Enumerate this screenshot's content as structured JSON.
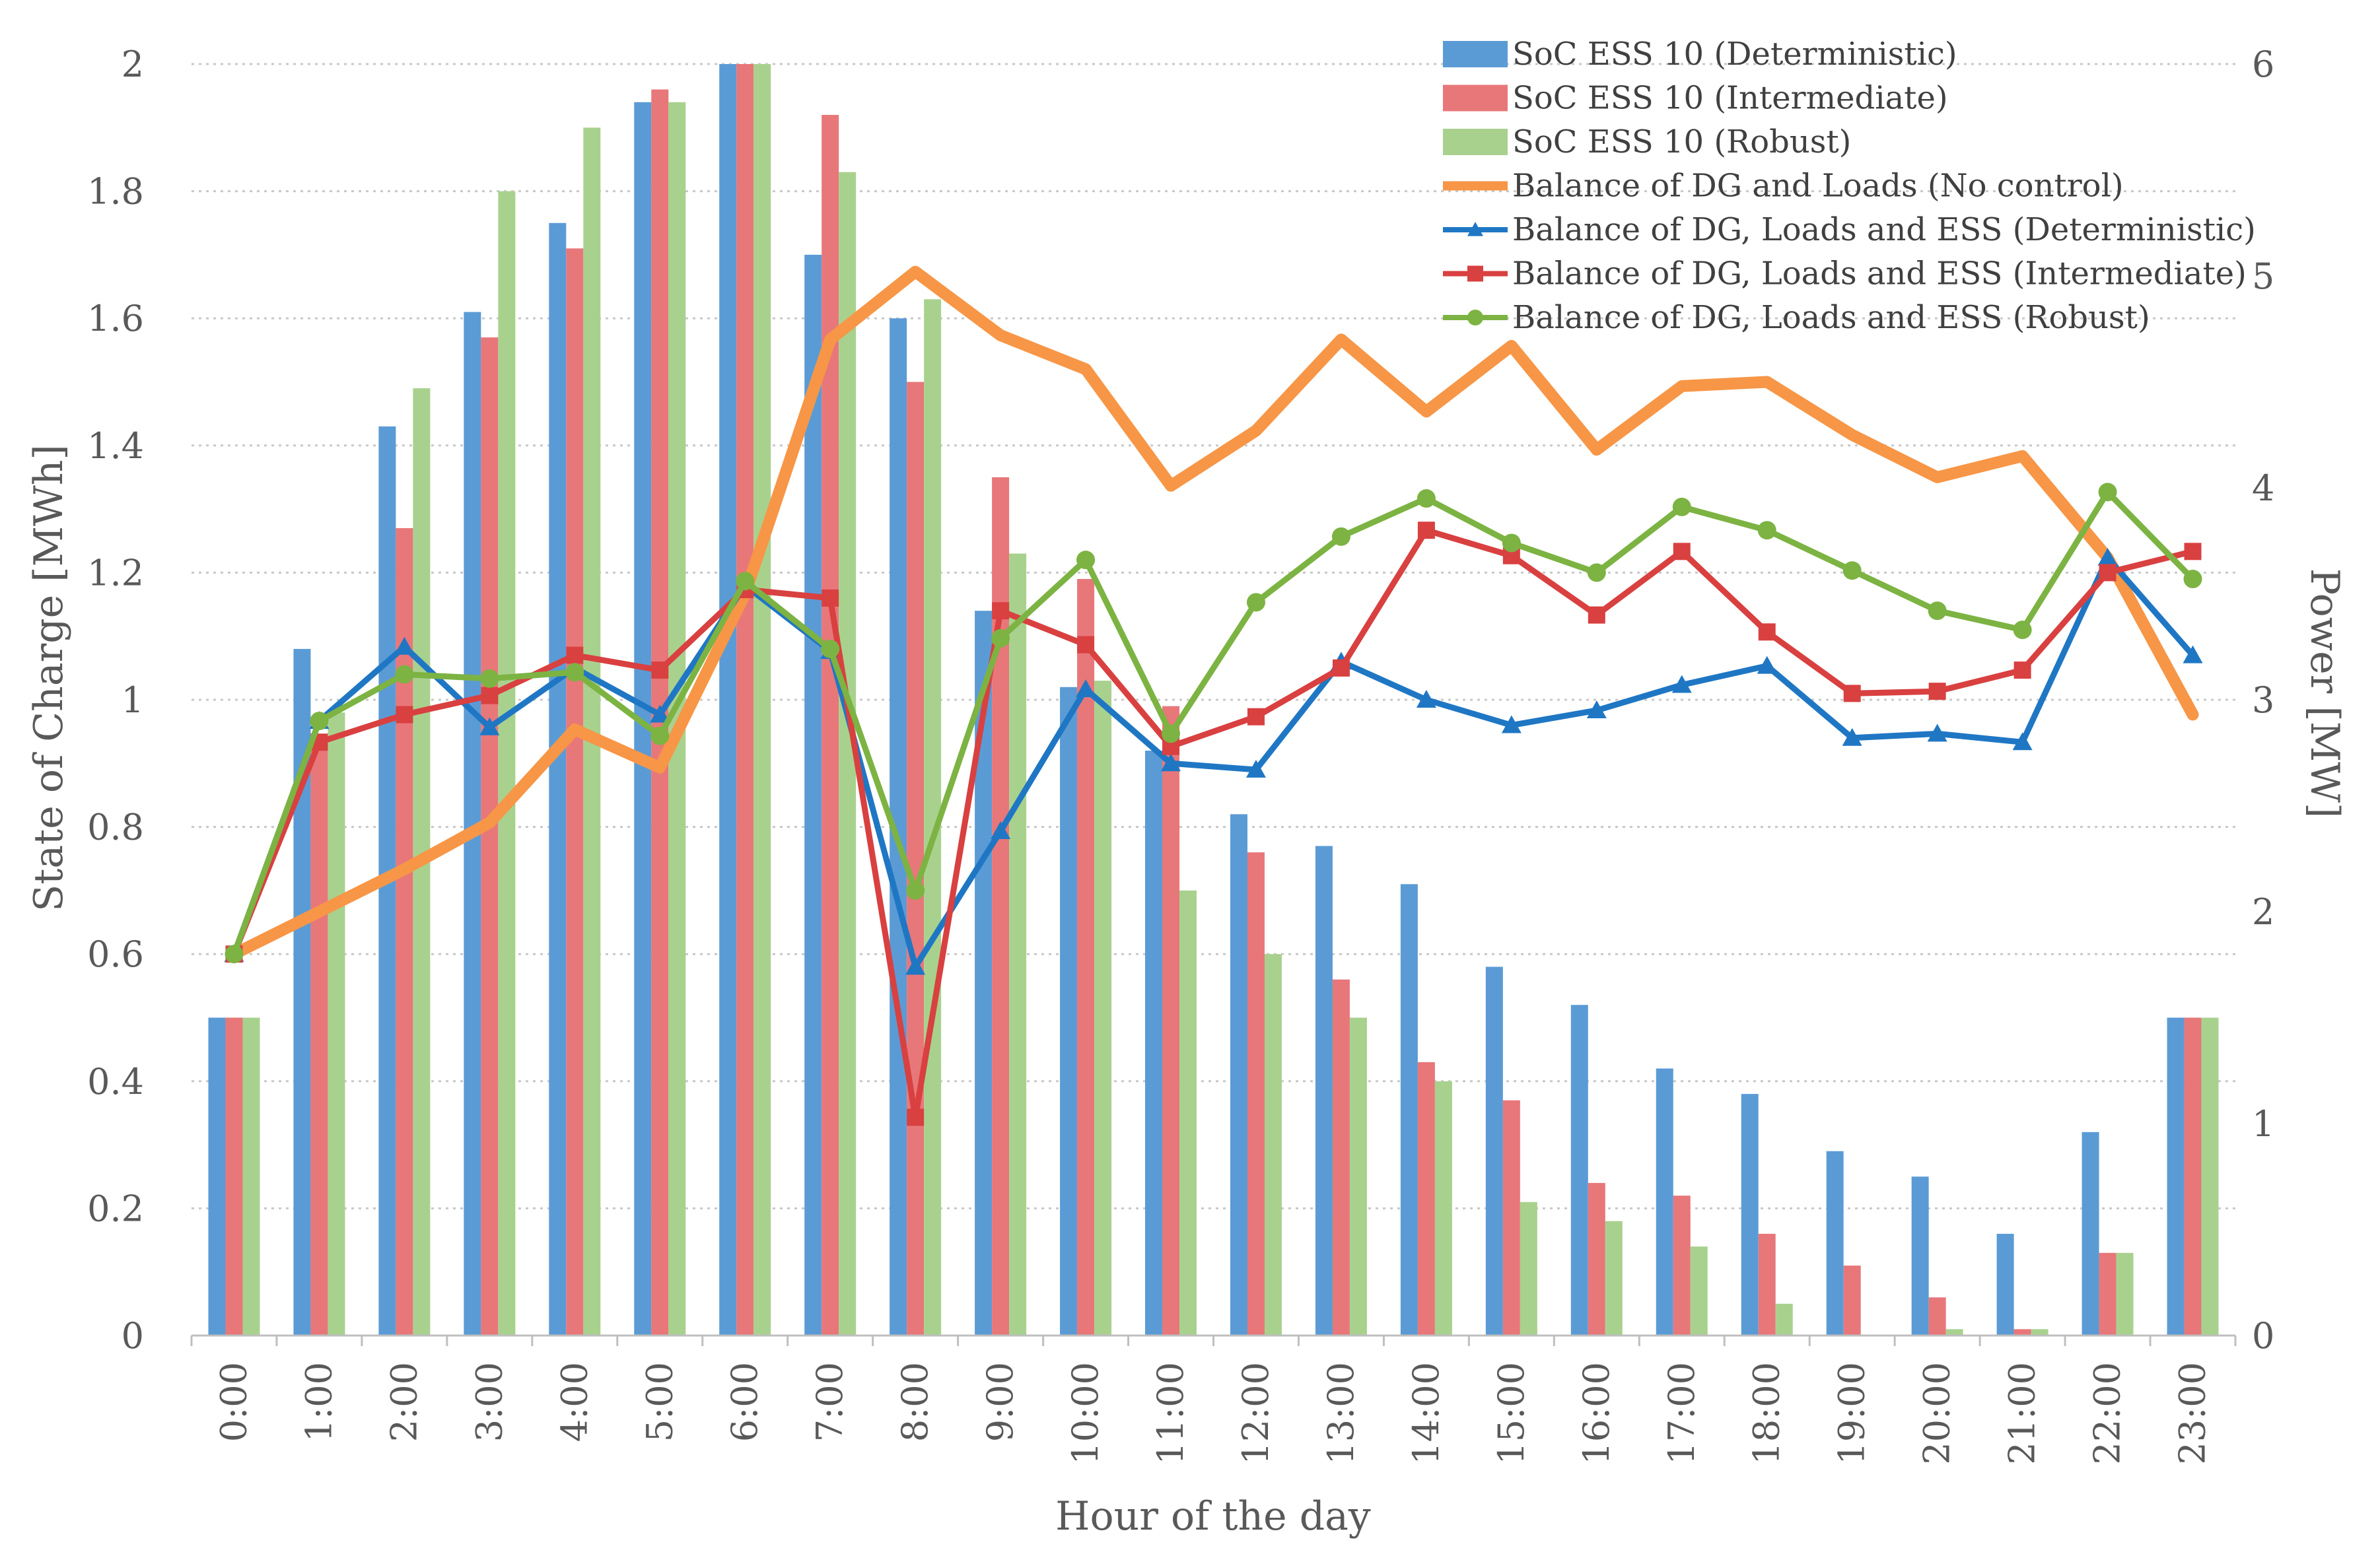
{
  "chart_data": {
    "type": "bar+line",
    "title": "",
    "xlabel": "Hour of the day",
    "ylabel_left": "State of Charge [MWh]",
    "ylabel_right": "Power [MW]",
    "ylim_left": [
      0,
      2
    ],
    "ylim_right": [
      0,
      6
    ],
    "yticks_left": [
      "0",
      "0.2",
      "0.4",
      "0.6",
      "0.8",
      "1",
      "1.2",
      "1.4",
      "1.6",
      "1.8",
      "2"
    ],
    "yticks_right": [
      "0",
      "1",
      "2",
      "3",
      "4",
      "5",
      "6"
    ],
    "grid": true,
    "legend_position": "top-right",
    "categories": [
      "0:00",
      "1:00",
      "2:00",
      "3:00",
      "4:00",
      "5:00",
      "6:00",
      "7:00",
      "8:00",
      "9:00",
      "10:00",
      "11:00",
      "12:00",
      "13:00",
      "14:00",
      "15:00",
      "16:00",
      "17:00",
      "18:00",
      "19:00",
      "20:00",
      "21:00",
      "22:00",
      "23:00"
    ],
    "bar_series": [
      {
        "name": "SoC ESS 10 (Deterministic)",
        "color": "#5B9BD5",
        "axis": "left",
        "values": [
          0.5,
          1.08,
          1.43,
          1.61,
          1.75,
          1.94,
          2.0,
          1.7,
          1.6,
          1.14,
          1.02,
          0.92,
          0.82,
          0.77,
          0.71,
          0.58,
          0.52,
          0.42,
          0.38,
          0.29,
          0.25,
          0.16,
          0.32,
          0.5
        ]
      },
      {
        "name": "SoC ESS 10 (Intermediate)",
        "color": "#E8777A",
        "axis": "left",
        "values": [
          0.5,
          0.93,
          1.27,
          1.57,
          1.71,
          1.96,
          2.0,
          1.92,
          1.5,
          1.35,
          1.19,
          0.99,
          0.76,
          0.56,
          0.43,
          0.37,
          0.24,
          0.22,
          0.16,
          0.11,
          0.06,
          0.01,
          0.13,
          0.5
        ]
      },
      {
        "name": "SoC ESS 10 (Robust)",
        "color": "#A9D18E",
        "axis": "left",
        "values": [
          0.5,
          0.98,
          1.49,
          1.8,
          1.9,
          1.94,
          2.0,
          1.83,
          1.63,
          1.23,
          1.03,
          0.7,
          0.6,
          0.5,
          0.4,
          0.21,
          0.18,
          0.14,
          0.05,
          0.0,
          0.01,
          0.01,
          0.13,
          0.5
        ]
      }
    ],
    "line_series": [
      {
        "name": "Balance of DG and Loads (No control)",
        "color": "#F79646",
        "axis": "right",
        "marker": "none",
        "width": 18,
        "values": [
          1.8,
          2.0,
          2.2,
          2.42,
          2.86,
          2.68,
          3.5,
          4.7,
          5.02,
          4.72,
          4.56,
          4.01,
          4.27,
          4.7,
          4.36,
          4.67,
          4.18,
          4.48,
          4.5,
          4.25,
          4.05,
          4.15,
          3.67,
          2.93
        ]
      },
      {
        "name": "Balance of DG, Loads and ESS (Deterministic)",
        "color": "#1F77C4",
        "axis": "right",
        "marker": "triangle",
        "width": 9,
        "values": [
          1.8,
          2.9,
          3.25,
          2.87,
          3.15,
          2.93,
          3.54,
          3.23,
          1.74,
          2.38,
          3.05,
          2.7,
          2.67,
          3.18,
          3.0,
          2.88,
          2.95,
          3.07,
          3.16,
          2.82,
          2.84,
          2.8,
          3.67,
          3.21
        ]
      },
      {
        "name": "Balance of DG, Loads and ESS (Intermediate)",
        "color": "#D94040",
        "axis": "right",
        "marker": "square",
        "width": 9,
        "values": [
          1.8,
          2.8,
          2.93,
          3.02,
          3.21,
          3.14,
          3.52,
          3.48,
          1.03,
          3.42,
          3.26,
          2.78,
          2.92,
          3.15,
          3.8,
          3.68,
          3.4,
          3.7,
          3.32,
          3.03,
          3.04,
          3.14,
          3.6,
          3.7
        ]
      },
      {
        "name": "Balance of DG, Loads and ESS (Robust)",
        "color": "#7CB342",
        "axis": "right",
        "marker": "circle",
        "width": 9,
        "values": [
          1.8,
          2.9,
          3.12,
          3.1,
          3.13,
          2.83,
          3.56,
          3.24,
          2.1,
          3.29,
          3.66,
          2.84,
          3.46,
          3.77,
          3.95,
          3.74,
          3.6,
          3.91,
          3.8,
          3.61,
          3.42,
          3.33,
          3.98,
          3.57
        ]
      }
    ]
  }
}
